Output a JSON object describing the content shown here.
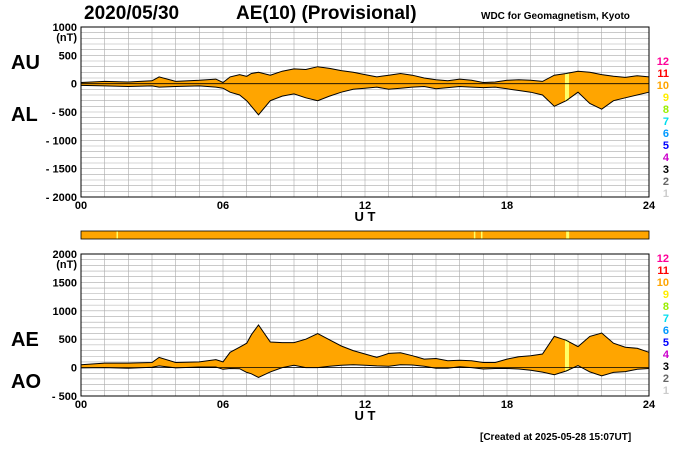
{
  "header": {
    "date": "2020/05/30",
    "title": "AE(10) (Provisional)",
    "wdc": "WDC for Geomagnetism, Kyoto"
  },
  "labels": {
    "au": "AU",
    "al": "AL",
    "ae": "AE",
    "ao": "AO"
  },
  "footer": {
    "created": "[Created at 2025-05-28 15:07UT]"
  },
  "colors": {
    "fill": "#ffa500",
    "line": "#000000",
    "grid": "#aaaaaa",
    "highlight": "#ffff66"
  },
  "legend": {
    "levels": [
      "12",
      "11",
      "10",
      "9",
      "8",
      "7",
      "6",
      "5",
      "4",
      "3",
      "2",
      "1"
    ],
    "colors": [
      "#ff0099",
      "#ff0000",
      "#ffa500",
      "#ffee00",
      "#99ee00",
      "#00ddee",
      "#0099ff",
      "#0000ff",
      "#cc00cc",
      "#000000",
      "#666666",
      "#cccccc"
    ]
  },
  "chart_data": [
    {
      "type": "area",
      "id": "au_al",
      "title": "AU / AL",
      "xlabel": "U T",
      "ylabel": "(nT)",
      "xlim": [
        0,
        24
      ],
      "ylim": [
        -2000,
        1000
      ],
      "xticks": [
        "00",
        "06",
        "12",
        "18",
        "24"
      ],
      "yticks": [
        {
          "v": 1000,
          "t": "1000"
        },
        {
          "v": 500,
          "t": "500"
        },
        {
          "v": 0,
          "t": "0"
        },
        {
          "v": -500,
          "t": "- 500"
        },
        {
          "v": -1000,
          "t": "- 1000"
        },
        {
          "v": -1500,
          "t": "- 1500"
        },
        {
          "v": -2000,
          "t": "- 2000"
        }
      ],
      "x": [
        0,
        1,
        2,
        3,
        3.3,
        4,
        5,
        5.7,
        6,
        6.3,
        6.7,
        7,
        7.2,
        7.5,
        8,
        8.5,
        9,
        9.5,
        10,
        10.5,
        11,
        11.5,
        12,
        12.5,
        13,
        13.5,
        14,
        14.5,
        15,
        15.5,
        16,
        16.5,
        17,
        17.5,
        18,
        18.5,
        19,
        19.5,
        20,
        20.5,
        21,
        21.5,
        22,
        22.5,
        23,
        23.5,
        24
      ],
      "series": [
        {
          "name": "AU",
          "values": [
            20,
            40,
            30,
            50,
            120,
            40,
            60,
            80,
            20,
            120,
            160,
            130,
            180,
            200,
            150,
            220,
            260,
            250,
            300,
            270,
            230,
            200,
            160,
            120,
            150,
            180,
            150,
            100,
            70,
            50,
            80,
            60,
            20,
            30,
            60,
            70,
            60,
            40,
            150,
            180,
            220,
            200,
            160,
            130,
            110,
            140,
            120
          ]
        },
        {
          "name": "AL",
          "values": [
            -30,
            -40,
            -50,
            -40,
            -60,
            -50,
            -40,
            -60,
            -80,
            -150,
            -200,
            -300,
            -400,
            -550,
            -300,
            -220,
            -180,
            -250,
            -300,
            -220,
            -150,
            -100,
            -80,
            -60,
            -100,
            -80,
            -60,
            -50,
            -90,
            -70,
            -50,
            -60,
            -70,
            -60,
            -90,
            -120,
            -150,
            -200,
            -400,
            -300,
            -150,
            -350,
            -450,
            -300,
            -250,
            -200,
            -150
          ]
        }
      ]
    },
    {
      "type": "area",
      "id": "ae_ao",
      "title": "AE / AO",
      "xlabel": "U T",
      "ylabel": "(nT)",
      "xlim": [
        0,
        24
      ],
      "ylim": [
        -500,
        2000
      ],
      "xticks": [
        "00",
        "06",
        "12",
        "18",
        "24"
      ],
      "yticks": [
        {
          "v": 2000,
          "t": "2000"
        },
        {
          "v": 1500,
          "t": "1500"
        },
        {
          "v": 1000,
          "t": "1000"
        },
        {
          "v": 500,
          "t": "500"
        },
        {
          "v": 0,
          "t": "0"
        },
        {
          "v": -500,
          "t": "- 500"
        }
      ],
      "x": [
        0,
        1,
        2,
        3,
        3.3,
        4,
        5,
        5.7,
        6,
        6.3,
        6.7,
        7,
        7.2,
        7.5,
        8,
        8.5,
        9,
        9.5,
        10,
        10.5,
        11,
        11.5,
        12,
        12.5,
        13,
        13.5,
        14,
        14.5,
        15,
        15.5,
        16,
        16.5,
        17,
        17.5,
        18,
        18.5,
        19,
        19.5,
        20,
        20.5,
        21,
        21.5,
        22,
        22.5,
        23,
        23.5,
        24
      ],
      "series": [
        {
          "name": "AE",
          "values": [
            50,
            80,
            80,
            90,
            180,
            90,
            100,
            140,
            100,
            270,
            360,
            430,
            580,
            750,
            450,
            440,
            440,
            500,
            600,
            490,
            380,
            300,
            240,
            180,
            250,
            260,
            210,
            150,
            160,
            120,
            130,
            120,
            90,
            90,
            150,
            190,
            210,
            240,
            550,
            480,
            370,
            550,
            610,
            430,
            360,
            340,
            270
          ]
        },
        {
          "name": "AO",
          "values": [
            -5,
            0,
            -10,
            5,
            30,
            -5,
            10,
            10,
            -30,
            -15,
            -20,
            -85,
            -110,
            -175,
            -75,
            0,
            40,
            0,
            0,
            25,
            40,
            50,
            40,
            30,
            25,
            50,
            45,
            25,
            -10,
            -10,
            15,
            0,
            -25,
            -15,
            -15,
            -25,
            -45,
            -80,
            -125,
            -60,
            35,
            -75,
            -145,
            -85,
            -70,
            -30,
            -15
          ]
        }
      ]
    }
  ],
  "bar": {
    "highlights_ut": [
      1.5,
      16.6,
      16.9,
      20.5
    ]
  }
}
